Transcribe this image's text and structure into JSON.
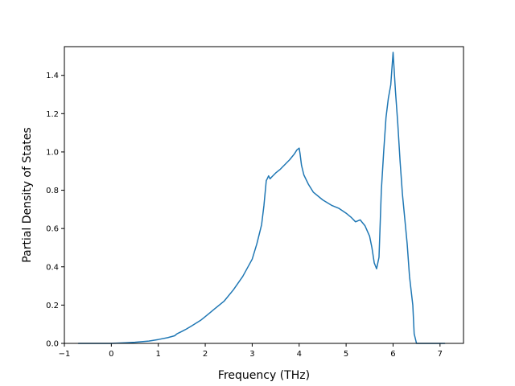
{
  "chart_data": {
    "type": "line",
    "title": "",
    "xlabel": "Frequency (THz)",
    "ylabel": "Partial Density of States",
    "xlim": [
      -1.0,
      7.5
    ],
    "ylim": [
      0.0,
      1.55
    ],
    "xticks": [
      -1,
      0,
      1,
      2,
      3,
      4,
      5,
      6,
      7
    ],
    "xtick_labels": [
      "−1",
      "0",
      "1",
      "2",
      "3",
      "4",
      "5",
      "6",
      "7"
    ],
    "yticks": [
      0.0,
      0.2,
      0.4,
      0.6,
      0.8,
      1.0,
      1.2,
      1.4
    ],
    "ytick_labels": [
      "0.0",
      "0.2",
      "0.4",
      "0.6",
      "0.8",
      "1.0",
      "1.2",
      "1.4"
    ],
    "grid": false,
    "line_color": "#1f77b4",
    "series": [
      {
        "x": [
          -0.7,
          0.0,
          0.3,
          0.5,
          0.8,
          1.0,
          1.2,
          1.35,
          1.4,
          1.5,
          1.6,
          1.7,
          1.8,
          1.9,
          2.0,
          2.1,
          2.2,
          2.4,
          2.6,
          2.8,
          3.0,
          3.1,
          3.2,
          3.25,
          3.3,
          3.32,
          3.35,
          3.38,
          3.42,
          3.5,
          3.6,
          3.7,
          3.8,
          3.85,
          3.9,
          3.95,
          4.0,
          4.02,
          4.05,
          4.1,
          4.2,
          4.3,
          4.5,
          4.7,
          4.85,
          5.0,
          5.1,
          5.2,
          5.3,
          5.35,
          5.4,
          5.5,
          5.55,
          5.6,
          5.65,
          5.7,
          5.75,
          5.8,
          5.85,
          5.9,
          5.95,
          6.0,
          6.05,
          6.1,
          6.15,
          6.2,
          6.3,
          6.35,
          6.42,
          6.45,
          6.5,
          6.6,
          6.8,
          7.0,
          7.1
        ],
        "y": [
          0.0,
          0.0,
          0.003,
          0.006,
          0.012,
          0.02,
          0.03,
          0.04,
          0.05,
          0.062,
          0.075,
          0.09,
          0.105,
          0.12,
          0.14,
          0.16,
          0.18,
          0.22,
          0.28,
          0.35,
          0.44,
          0.52,
          0.62,
          0.72,
          0.85,
          0.86,
          0.875,
          0.86,
          0.87,
          0.89,
          0.91,
          0.935,
          0.96,
          0.975,
          0.99,
          1.01,
          1.02,
          0.99,
          0.93,
          0.88,
          0.83,
          0.79,
          0.75,
          0.72,
          0.705,
          0.68,
          0.66,
          0.635,
          0.645,
          0.63,
          0.615,
          0.56,
          0.5,
          0.42,
          0.39,
          0.45,
          0.8,
          1.0,
          1.18,
          1.28,
          1.35,
          1.52,
          1.32,
          1.15,
          0.95,
          0.78,
          0.52,
          0.35,
          0.2,
          0.05,
          0.0,
          0.0,
          0.0,
          0.0,
          0.0
        ]
      }
    ]
  }
}
